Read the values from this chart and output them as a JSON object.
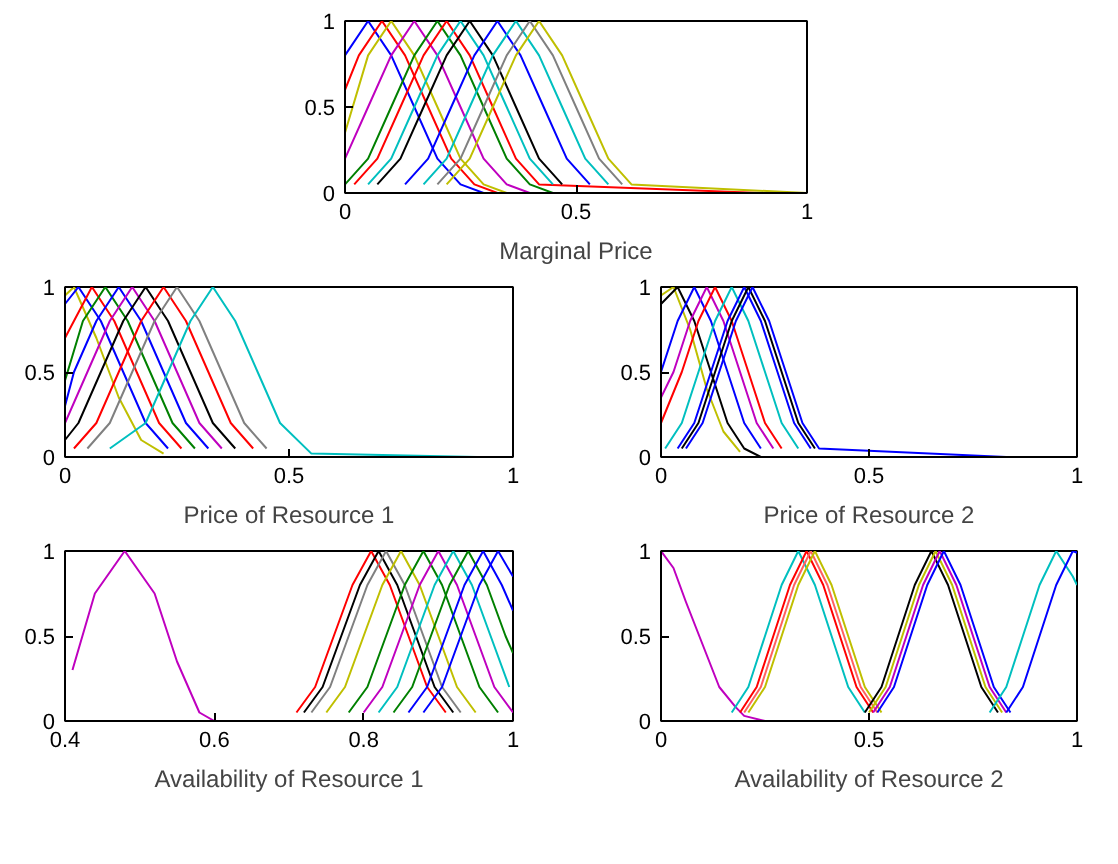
{
  "chart_data": [
    {
      "type": "line",
      "xlabel": "Marginal Price",
      "xlim": [
        0,
        1
      ],
      "ylim": [
        0,
        1
      ],
      "xticks": [
        0,
        0.5,
        1
      ],
      "yticks": [
        0,
        0.5,
        1
      ],
      "series": [
        {
          "color": "#0000ff",
          "x": [
            0,
            0.05,
            0.1,
            0.15,
            0.2,
            0.25,
            0.3
          ],
          "values": [
            0.8,
            1,
            0.8,
            0.5,
            0.2,
            0.05,
            0
          ]
        },
        {
          "color": "#ff0000",
          "x": [
            0,
            0.03,
            0.08,
            0.13,
            0.18,
            0.23,
            0.28,
            0.33
          ],
          "values": [
            0.6,
            0.8,
            1,
            0.8,
            0.5,
            0.2,
            0.05,
            0
          ]
        },
        {
          "color": "#bfbf00",
          "x": [
            0,
            0.05,
            0.1,
            0.15,
            0.2,
            0.25,
            0.3,
            0.35
          ],
          "values": [
            0.35,
            0.8,
            1,
            0.8,
            0.5,
            0.2,
            0.05,
            0
          ]
        },
        {
          "color": "#bf00bf",
          "x": [
            0,
            0.05,
            0.1,
            0.15,
            0.2,
            0.25,
            0.3,
            0.35,
            0.4
          ],
          "values": [
            0.2,
            0.5,
            0.8,
            1,
            0.8,
            0.5,
            0.2,
            0.05,
            0
          ]
        },
        {
          "color": "#008000",
          "x": [
            0,
            0.05,
            0.1,
            0.15,
            0.2,
            0.25,
            0.3,
            0.35,
            0.4,
            0.45
          ],
          "values": [
            0.05,
            0.2,
            0.5,
            0.8,
            1,
            0.8,
            0.5,
            0.2,
            0.05,
            0
          ]
        },
        {
          "color": "#ff0000",
          "x": [
            0.02,
            0.07,
            0.12,
            0.17,
            0.22,
            0.27,
            0.32,
            0.37,
            0.42,
            0.9
          ],
          "values": [
            0.05,
            0.2,
            0.5,
            0.8,
            1,
            0.8,
            0.5,
            0.2,
            0.05,
            0
          ]
        },
        {
          "color": "#00bfbf",
          "x": [
            0.05,
            0.1,
            0.15,
            0.2,
            0.25,
            0.3,
            0.35,
            0.4,
            0.45
          ],
          "values": [
            0.05,
            0.2,
            0.5,
            0.8,
            1,
            0.8,
            0.5,
            0.2,
            0.05
          ]
        },
        {
          "color": "#000000",
          "x": [
            0.07,
            0.12,
            0.17,
            0.22,
            0.27,
            0.32,
            0.37,
            0.42,
            0.47
          ],
          "values": [
            0.05,
            0.2,
            0.5,
            0.8,
            1,
            0.8,
            0.5,
            0.2,
            0.05
          ]
        },
        {
          "color": "#0000ff",
          "x": [
            0.13,
            0.18,
            0.23,
            0.28,
            0.33,
            0.38,
            0.43,
            0.48,
            0.53
          ],
          "values": [
            0.05,
            0.2,
            0.5,
            0.8,
            1,
            0.8,
            0.5,
            0.2,
            0.05
          ]
        },
        {
          "color": "#00bfbf",
          "x": [
            0.17,
            0.22,
            0.27,
            0.32,
            0.37,
            0.42,
            0.47,
            0.52,
            0.57
          ],
          "values": [
            0.05,
            0.2,
            0.5,
            0.8,
            1,
            0.8,
            0.5,
            0.2,
            0.05
          ]
        },
        {
          "color": "#808080",
          "x": [
            0.2,
            0.25,
            0.3,
            0.35,
            0.4,
            0.45,
            0.5,
            0.55,
            0.6
          ],
          "values": [
            0.05,
            0.2,
            0.5,
            0.8,
            1,
            0.8,
            0.5,
            0.2,
            0.05
          ]
        },
        {
          "color": "#bfbf00",
          "x": [
            0.22,
            0.27,
            0.32,
            0.37,
            0.42,
            0.47,
            0.52,
            0.57,
            0.62,
            1
          ],
          "values": [
            0.05,
            0.2,
            0.5,
            0.8,
            1,
            0.8,
            0.5,
            0.2,
            0.05,
            0
          ]
        }
      ]
    },
    {
      "type": "line",
      "xlabel": "Price of Resource 1",
      "xlim": [
        0,
        1
      ],
      "ylim": [
        0,
        1
      ],
      "xticks": [
        0,
        0.5,
        1
      ],
      "yticks": [
        0,
        0.5,
        1
      ],
      "series": [
        {
          "color": "#bfbf00",
          "x": [
            0,
            0.02,
            0.07,
            0.12,
            0.17,
            0.22
          ],
          "values": [
            0.95,
            1,
            0.7,
            0.35,
            0.1,
            0.02
          ]
        },
        {
          "color": "#0000ff",
          "x": [
            0,
            0.03,
            0.08,
            0.13,
            0.18,
            0.23
          ],
          "values": [
            0.9,
            1,
            0.8,
            0.5,
            0.2,
            0.05
          ]
        },
        {
          "color": "#ff0000",
          "x": [
            0,
            0.06,
            0.11,
            0.16,
            0.21,
            0.26
          ],
          "values": [
            0.7,
            1,
            0.8,
            0.5,
            0.2,
            0.05
          ]
        },
        {
          "color": "#008000",
          "x": [
            0,
            0.04,
            0.09,
            0.14,
            0.19,
            0.24,
            0.29
          ],
          "values": [
            0.45,
            0.8,
            1,
            0.8,
            0.5,
            0.2,
            0.05
          ]
        },
        {
          "color": "#0000ff",
          "x": [
            0,
            0.02,
            0.07,
            0.12,
            0.17,
            0.22,
            0.27,
            0.32
          ],
          "values": [
            0.3,
            0.5,
            0.8,
            1,
            0.8,
            0.5,
            0.2,
            0.05
          ]
        },
        {
          "color": "#bf00bf",
          "x": [
            0,
            0.05,
            0.1,
            0.15,
            0.2,
            0.25,
            0.3,
            0.35
          ],
          "values": [
            0.2,
            0.5,
            0.8,
            1,
            0.8,
            0.5,
            0.2,
            0.05
          ]
        },
        {
          "color": "#000000",
          "x": [
            0,
            0.03,
            0.08,
            0.13,
            0.18,
            0.23,
            0.28,
            0.33,
            0.38
          ],
          "values": [
            0.1,
            0.2,
            0.5,
            0.8,
            1,
            0.8,
            0.5,
            0.2,
            0.05
          ]
        },
        {
          "color": "#ff0000",
          "x": [
            0.02,
            0.07,
            0.12,
            0.17,
            0.22,
            0.27,
            0.32,
            0.37,
            0.42
          ],
          "values": [
            0.05,
            0.2,
            0.5,
            0.8,
            1,
            0.8,
            0.5,
            0.2,
            0.05
          ]
        },
        {
          "color": "#808080",
          "x": [
            0.05,
            0.1,
            0.15,
            0.2,
            0.25,
            0.3,
            0.35,
            0.4,
            0.45
          ],
          "values": [
            0.05,
            0.2,
            0.5,
            0.8,
            1,
            0.8,
            0.5,
            0.2,
            0.05
          ]
        },
        {
          "color": "#00bfbf",
          "x": [
            0.1,
            0.18,
            0.23,
            0.28,
            0.33,
            0.38,
            0.43,
            0.48,
            0.55,
            0.92
          ],
          "values": [
            0.05,
            0.2,
            0.5,
            0.8,
            1,
            0.8,
            0.5,
            0.2,
            0.02,
            0
          ]
        }
      ]
    },
    {
      "type": "line",
      "xlabel": "Price of Resource 2",
      "xlim": [
        0,
        1
      ],
      "ylim": [
        0,
        1
      ],
      "xticks": [
        0,
        0.5,
        1
      ],
      "yticks": [
        0,
        0.5,
        1
      ],
      "series": [
        {
          "color": "#bfbf00",
          "x": [
            0,
            0.03,
            0.07,
            0.11,
            0.15,
            0.19
          ],
          "values": [
            0.95,
            1,
            0.75,
            0.4,
            0.15,
            0.03
          ]
        },
        {
          "color": "#000000",
          "x": [
            0,
            0.04,
            0.08,
            0.12,
            0.16,
            0.2,
            0.24
          ],
          "values": [
            0.9,
            1,
            0.8,
            0.5,
            0.2,
            0.05,
            0
          ]
        },
        {
          "color": "#0000ff",
          "x": [
            0,
            0.04,
            0.08,
            0.12,
            0.16,
            0.2,
            0.24
          ],
          "values": [
            0.5,
            0.8,
            1,
            0.8,
            0.5,
            0.2,
            0.05
          ]
        },
        {
          "color": "#bf00bf",
          "x": [
            0,
            0.03,
            0.07,
            0.11,
            0.15,
            0.19,
            0.23,
            0.27
          ],
          "values": [
            0.35,
            0.5,
            0.8,
            1,
            0.8,
            0.5,
            0.2,
            0.05
          ]
        },
        {
          "color": "#ff0000",
          "x": [
            0,
            0.05,
            0.09,
            0.13,
            0.17,
            0.21,
            0.25,
            0.29
          ],
          "values": [
            0.2,
            0.5,
            0.8,
            1,
            0.8,
            0.5,
            0.2,
            0.05
          ]
        },
        {
          "color": "#00bfbf",
          "x": [
            0.01,
            0.05,
            0.09,
            0.13,
            0.17,
            0.21,
            0.25,
            0.29,
            0.33
          ],
          "values": [
            0.05,
            0.2,
            0.5,
            0.8,
            1,
            0.8,
            0.5,
            0.2,
            0.05
          ]
        },
        {
          "color": "#0000ff",
          "x": [
            0.04,
            0.08,
            0.12,
            0.16,
            0.2,
            0.24,
            0.28,
            0.32,
            0.36
          ],
          "values": [
            0.05,
            0.2,
            0.5,
            0.8,
            1,
            0.8,
            0.5,
            0.2,
            0.05
          ]
        },
        {
          "color": "#000000",
          "x": [
            0.05,
            0.09,
            0.13,
            0.17,
            0.21,
            0.25,
            0.29,
            0.33,
            0.37
          ],
          "values": [
            0.05,
            0.2,
            0.5,
            0.8,
            1,
            0.8,
            0.5,
            0.2,
            0.05
          ]
        },
        {
          "color": "#0000ff",
          "x": [
            0.06,
            0.1,
            0.14,
            0.18,
            0.22,
            0.26,
            0.3,
            0.34,
            0.38,
            0.83
          ],
          "values": [
            0.05,
            0.2,
            0.5,
            0.8,
            1,
            0.8,
            0.5,
            0.2,
            0.05,
            0
          ]
        }
      ]
    },
    {
      "type": "line",
      "xlabel": "Availability of Resource 1",
      "xlim": [
        0.4,
        1
      ],
      "ylim": [
        0,
        1
      ],
      "xticks": [
        0.4,
        0.6,
        0.8,
        1
      ],
      "yticks": [
        0,
        0.5,
        1
      ],
      "series": [
        {
          "color": "#bf00bf",
          "x": [
            0.41,
            0.44,
            0.48,
            0.52,
            0.55,
            0.58,
            0.6,
            1
          ],
          "values": [
            0.3,
            0.75,
            1,
            0.75,
            0.35,
            0.05,
            0,
            0
          ]
        },
        {
          "color": "#ff0000",
          "x": [
            0.71,
            0.735,
            0.76,
            0.785,
            0.81,
            0.835,
            0.86,
            0.885,
            0.91
          ],
          "values": [
            0.05,
            0.2,
            0.5,
            0.8,
            1,
            0.8,
            0.5,
            0.2,
            0.05
          ]
        },
        {
          "color": "#000000",
          "x": [
            0.72,
            0.745,
            0.77,
            0.795,
            0.82,
            0.845,
            0.87,
            0.895,
            0.92
          ],
          "values": [
            0.05,
            0.2,
            0.5,
            0.8,
            1,
            0.8,
            0.5,
            0.2,
            0.05
          ]
        },
        {
          "color": "#808080",
          "x": [
            0.73,
            0.755,
            0.78,
            0.805,
            0.83,
            0.855,
            0.88,
            0.905,
            0.93
          ],
          "values": [
            0.05,
            0.2,
            0.5,
            0.8,
            1,
            0.8,
            0.5,
            0.2,
            0.05
          ]
        },
        {
          "color": "#bfbf00",
          "x": [
            0.75,
            0.775,
            0.8,
            0.825,
            0.85,
            0.875,
            0.9,
            0.925,
            0.95
          ],
          "values": [
            0.05,
            0.2,
            0.5,
            0.8,
            1,
            0.8,
            0.5,
            0.2,
            0.05
          ]
        },
        {
          "color": "#008000",
          "x": [
            0.78,
            0.805,
            0.83,
            0.855,
            0.88,
            0.905,
            0.93,
            0.955,
            0.98
          ],
          "values": [
            0.05,
            0.2,
            0.5,
            0.8,
            1,
            0.8,
            0.5,
            0.2,
            0.05
          ]
        },
        {
          "color": "#bf00bf",
          "x": [
            0.8,
            0.825,
            0.85,
            0.875,
            0.9,
            0.925,
            0.95,
            0.975,
            1
          ],
          "values": [
            0.05,
            0.2,
            0.5,
            0.8,
            1,
            0.8,
            0.5,
            0.2,
            0.05
          ]
        },
        {
          "color": "#00bfbf",
          "x": [
            0.82,
            0.845,
            0.87,
            0.895,
            0.92,
            0.945,
            0.97,
            0.995
          ],
          "values": [
            0.05,
            0.2,
            0.5,
            0.8,
            1,
            0.8,
            0.5,
            0.2
          ]
        },
        {
          "color": "#008000",
          "x": [
            0.84,
            0.865,
            0.89,
            0.915,
            0.94,
            0.965,
            0.99,
            1
          ],
          "values": [
            0.05,
            0.2,
            0.5,
            0.8,
            1,
            0.8,
            0.5,
            0.4
          ]
        },
        {
          "color": "#0000ff",
          "x": [
            0.86,
            0.885,
            0.91,
            0.935,
            0.96,
            0.985,
            1
          ],
          "values": [
            0.05,
            0.2,
            0.5,
            0.8,
            1,
            0.8,
            0.65
          ]
        },
        {
          "color": "#0000ff",
          "x": [
            0.88,
            0.905,
            0.93,
            0.955,
            0.98,
            1
          ],
          "values": [
            0.05,
            0.2,
            0.5,
            0.8,
            1,
            0.85
          ]
        }
      ]
    },
    {
      "type": "line",
      "xlabel": "Availability of Resource 2",
      "xlim": [
        0,
        1
      ],
      "ylim": [
        0,
        1
      ],
      "xticks": [
        0,
        0.5,
        1
      ],
      "yticks": [
        0,
        0.5,
        1
      ],
      "series": [
        {
          "color": "#bf00bf",
          "x": [
            0,
            0.03,
            0.06,
            0.1,
            0.14,
            0.18,
            0.2,
            0.25
          ],
          "values": [
            1,
            0.9,
            0.7,
            0.45,
            0.2,
            0.08,
            0.03,
            0
          ]
        },
        {
          "color": "#00bfbf",
          "x": [
            0.17,
            0.21,
            0.25,
            0.29,
            0.33,
            0.37,
            0.41,
            0.45,
            0.49
          ],
          "values": [
            0.05,
            0.2,
            0.5,
            0.8,
            1,
            0.8,
            0.5,
            0.2,
            0.05
          ]
        },
        {
          "color": "#ff0000",
          "x": [
            0.19,
            0.23,
            0.27,
            0.31,
            0.35,
            0.39,
            0.43,
            0.47,
            0.51
          ],
          "values": [
            0.05,
            0.2,
            0.5,
            0.8,
            1,
            0.8,
            0.5,
            0.2,
            0.05
          ]
        },
        {
          "color": "#ff6060",
          "x": [
            0.2,
            0.24,
            0.28,
            0.32,
            0.36,
            0.4,
            0.44,
            0.48,
            0.52
          ],
          "values": [
            0.05,
            0.2,
            0.5,
            0.8,
            1,
            0.8,
            0.5,
            0.2,
            0.05
          ]
        },
        {
          "color": "#bfbf00",
          "x": [
            0.21,
            0.25,
            0.29,
            0.33,
            0.37,
            0.41,
            0.45,
            0.49,
            0.53
          ],
          "values": [
            0.05,
            0.2,
            0.5,
            0.8,
            1,
            0.8,
            0.5,
            0.2,
            0.05
          ]
        },
        {
          "color": "#000000",
          "x": [
            0.49,
            0.53,
            0.57,
            0.61,
            0.65,
            0.69,
            0.73,
            0.77,
            0.81
          ],
          "values": [
            0.05,
            0.2,
            0.5,
            0.8,
            1,
            0.8,
            0.5,
            0.2,
            0.05
          ]
        },
        {
          "color": "#bfbf00",
          "x": [
            0.5,
            0.54,
            0.58,
            0.62,
            0.66,
            0.7,
            0.74,
            0.78,
            0.82
          ],
          "values": [
            0.05,
            0.2,
            0.5,
            0.8,
            1,
            0.8,
            0.5,
            0.2,
            0.05
          ]
        },
        {
          "color": "#bf00bf",
          "x": [
            0.51,
            0.55,
            0.59,
            0.63,
            0.67,
            0.71,
            0.75,
            0.79,
            0.83
          ],
          "values": [
            0.05,
            0.2,
            0.5,
            0.8,
            1,
            0.8,
            0.5,
            0.2,
            0.05
          ]
        },
        {
          "color": "#0000ff",
          "x": [
            0.52,
            0.56,
            0.6,
            0.64,
            0.68,
            0.72,
            0.76,
            0.8,
            0.84
          ],
          "values": [
            0.05,
            0.2,
            0.5,
            0.8,
            1,
            0.8,
            0.5,
            0.2,
            0.05
          ]
        },
        {
          "color": "#00bfbf",
          "x": [
            0.79,
            0.83,
            0.87,
            0.91,
            0.95,
            0.99,
            1
          ],
          "values": [
            0.05,
            0.2,
            0.5,
            0.8,
            1,
            0.85,
            0.8
          ]
        },
        {
          "color": "#0000ff",
          "x": [
            0.83,
            0.87,
            0.91,
            0.95,
            0.99,
            1
          ],
          "values": [
            0.05,
            0.2,
            0.5,
            0.8,
            1,
            0.99
          ]
        }
      ]
    }
  ]
}
